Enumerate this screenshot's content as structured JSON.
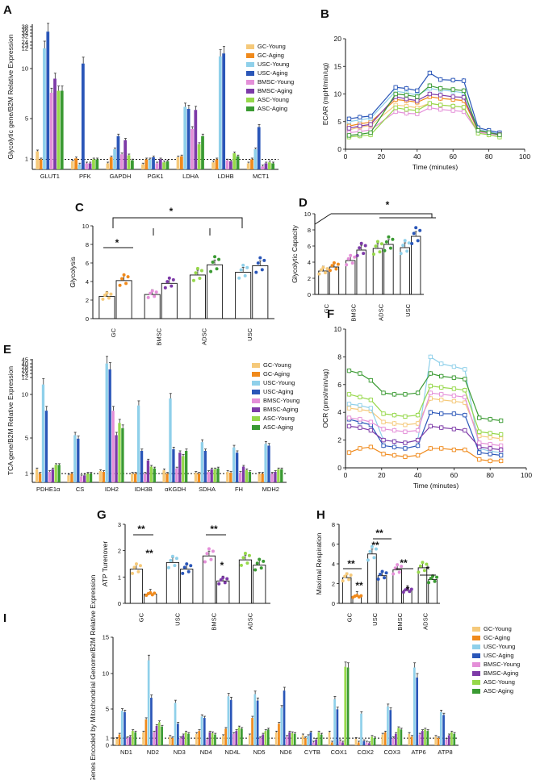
{
  "colors": {
    "GC-Young": "#f5c97a",
    "GC-Aging": "#f08a1c",
    "USC-Young": "#8fd0ea",
    "USC-Aging": "#2a56b8",
    "BMSC-Young": "#e48fd8",
    "BMSC-Aging": "#7d3aa8",
    "ASC-Young": "#96d84a",
    "ASC-Aging": "#3a9a32"
  },
  "legend_labels": [
    "GC-Young",
    "GC-Aging",
    "USC-Young",
    "USC-Aging",
    "BMSC-Young",
    "BMSC-Aging",
    "ASC-Young",
    "ASC-Aging"
  ],
  "chart_data": [
    {
      "panel": "A",
      "type": "bar",
      "ylabel": "Glycolytic gene/B2M Relative Expression",
      "categories": [
        "GLUT1",
        "PFK",
        "GAPDH",
        "PGK1",
        "LDHA",
        "LDHB",
        "MCT1"
      ],
      "yticks": [
        "1",
        "5",
        "10",
        "12",
        "23",
        "24",
        "32",
        "34",
        "36",
        "38"
      ],
      "series_values": [
        [
          1.8,
          0.8,
          0.6,
          0.5,
          1.2,
          0.7,
          0.6
        ],
        [
          1.0,
          1.1,
          1.2,
          1.0,
          1.3,
          1.0,
          1.0
        ],
        [
          12,
          0.5,
          2.0,
          1.0,
          6.2,
          11.2,
          2.0
        ],
        [
          30,
          10.5,
          3.3,
          1.2,
          6.0,
          11.5,
          4.2
        ],
        [
          7.6,
          0.6,
          1.5,
          0.6,
          4.0,
          0.9,
          0.3
        ],
        [
          9.0,
          0.6,
          2.9,
          1.0,
          5.9,
          0.8,
          0.6
        ],
        [
          7.8,
          1.0,
          1.4,
          0.7,
          2.5,
          1.6,
          0.7
        ],
        [
          7.8,
          1.0,
          0.9,
          0.8,
          3.3,
          1.3,
          0.6
        ]
      ]
    },
    {
      "panel": "B",
      "type": "line",
      "xlabel": "Time (minutes)",
      "ylabel": "ECAR (mpH/min/ug)",
      "xlim": [
        0,
        100
      ],
      "ylim": [
        0,
        20
      ],
      "xticks": [
        "0",
        "20",
        "40",
        "60",
        "80",
        "100"
      ],
      "yticks": [
        "0",
        "5",
        "10",
        "15",
        "20"
      ],
      "x": [
        2,
        8,
        14,
        28,
        34,
        40,
        47,
        53,
        60,
        66,
        74,
        80,
        86
      ],
      "series_values": [
        [
          3.5,
          4.0,
          4.3,
          8.0,
          7.8,
          7.5,
          8.3,
          8.0,
          7.8,
          7.6,
          3.2,
          3.0,
          2.6
        ],
        [
          4.2,
          4.6,
          4.9,
          9.0,
          8.8,
          8.5,
          9.5,
          9.2,
          9.0,
          8.8,
          3.4,
          3.1,
          2.7
        ],
        [
          5.0,
          5.3,
          5.6,
          10.5,
          10.2,
          9.8,
          11.0,
          10.7,
          10.5,
          10.2,
          3.6,
          3.2,
          2.8
        ],
        [
          5.5,
          5.8,
          6.0,
          11.2,
          11.0,
          10.6,
          13.8,
          12.6,
          12.5,
          12.4,
          3.9,
          3.4,
          3.0
        ],
        [
          3.0,
          3.2,
          3.5,
          6.8,
          6.5,
          6.4,
          7.5,
          7.2,
          7.0,
          6.8,
          3.1,
          2.8,
          2.5
        ],
        [
          3.8,
          4.2,
          4.5,
          9.5,
          9.1,
          8.8,
          10.0,
          9.8,
          9.5,
          9.4,
          3.4,
          3.0,
          2.7
        ],
        [
          2.2,
          2.4,
          2.6,
          7.5,
          7.2,
          7.0,
          8.3,
          8.0,
          7.8,
          7.6,
          2.9,
          2.6,
          2.2
        ],
        [
          2.5,
          2.7,
          3.0,
          10.0,
          9.8,
          9.5,
          11.5,
          11.0,
          10.8,
          10.6,
          3.4,
          3.0,
          2.6
        ]
      ]
    },
    {
      "panel": "C",
      "type": "bar",
      "ylabel": "Glycolysis",
      "ylim": [
        0,
        10
      ],
      "yticks": [
        "0",
        "2",
        "4",
        "6",
        "8",
        "10"
      ],
      "categories": [
        "GC",
        "BMSC",
        "ADSC",
        "USC"
      ],
      "series": [
        {
          "name": "Young",
          "values": [
            2.4,
            2.6,
            4.7,
            5.0
          ]
        },
        {
          "name": "Aging",
          "values": [
            4.1,
            3.8,
            5.8,
            5.7
          ]
        }
      ],
      "significance": [
        "*",
        "*"
      ]
    },
    {
      "panel": "D",
      "type": "bar",
      "ylabel": "Glycolytic Capacity",
      "ylim": [
        0,
        10
      ],
      "yticks": [
        "0",
        "2",
        "4",
        "6",
        "8",
        "10"
      ],
      "categories": [
        "GC",
        "BMSC",
        "ADSC",
        "USC"
      ],
      "series": [
        {
          "name": "Young",
          "values": [
            2.9,
            4.2,
            5.7,
            5.8
          ]
        },
        {
          "name": "Aging",
          "values": [
            3.4,
            5.5,
            6.2,
            7.2
          ]
        }
      ],
      "significance": [
        "*"
      ]
    },
    {
      "panel": "E",
      "type": "bar",
      "ylabel": "TCA gene/B2M Relative Expression",
      "categories": [
        "PDHE1α",
        "CS",
        "IDH2",
        "IDH3B",
        "αKGDH",
        "SDHA",
        "FH",
        "MDH2"
      ],
      "yticks": [
        "1",
        "5",
        "10",
        "12",
        "24",
        "26",
        "28",
        "40",
        "45"
      ],
      "series_values": [
        [
          1.5,
          0.8,
          1.3,
          1.0,
          1.4,
          1.1,
          1.2,
          1.0
        ],
        [
          1.0,
          1.0,
          1.2,
          1.0,
          1.0,
          1.0,
          1.1,
          1.0
        ],
        [
          11.2,
          5.4,
          38.0,
          8.8,
          9.6,
          4.6,
          4.0,
          4.4
        ],
        [
          8.2,
          5.0,
          27.0,
          3.6,
          3.8,
          3.6,
          3.4,
          4.2
        ],
        [
          1.2,
          0.7,
          8.2,
          1.0,
          1.6,
          1.2,
          1.1,
          1.0
        ],
        [
          1.5,
          0.8,
          5.4,
          2.5,
          3.4,
          1.5,
          1.8,
          1.2
        ],
        [
          2.0,
          1.0,
          6.8,
          1.8,
          3.0,
          1.5,
          1.4,
          1.5
        ],
        [
          2.0,
          1.0,
          6.2,
          1.6,
          3.6,
          1.6,
          1.2,
          1.5
        ]
      ]
    },
    {
      "panel": "F",
      "type": "line",
      "xlabel": "Time (minutes)",
      "ylabel": "OCR (pmol/min/ug)",
      "xlim": [
        0,
        100
      ],
      "ylim": [
        0,
        10
      ],
      "xticks": [
        "0",
        "20",
        "40",
        "60",
        "80",
        "100"
      ],
      "yticks": [
        "0",
        "2",
        "4",
        "6",
        "8",
        "10"
      ],
      "x": [
        2,
        8,
        14,
        21,
        27,
        33,
        40,
        47,
        53,
        60,
        66,
        74,
        80,
        86
      ],
      "series_values": [
        [
          4.3,
          4.2,
          4.1,
          3.3,
          3.2,
          3.1,
          3.2,
          5.0,
          4.9,
          4.8,
          4.7,
          2.3,
          2.2,
          2.1
        ],
        [
          1.1,
          1.4,
          1.5,
          1.0,
          0.9,
          0.8,
          0.9,
          1.4,
          1.4,
          1.3,
          1.3,
          0.6,
          0.5,
          0.5
        ],
        [
          4.6,
          4.5,
          4.3,
          2.0,
          1.9,
          1.8,
          2.0,
          8.0,
          7.5,
          7.3,
          7.1,
          1.4,
          1.2,
          1.1
        ],
        [
          3.5,
          3.3,
          3.1,
          1.6,
          1.5,
          1.4,
          1.6,
          4.0,
          3.9,
          3.9,
          3.8,
          1.1,
          1.0,
          0.9
        ],
        [
          3.6,
          3.5,
          3.3,
          2.8,
          2.7,
          2.6,
          2.7,
          5.4,
          5.3,
          5.2,
          5.1,
          1.8,
          1.7,
          1.6
        ],
        [
          3.0,
          2.9,
          2.7,
          2.0,
          1.9,
          1.8,
          2.0,
          3.0,
          2.9,
          2.8,
          2.7,
          1.5,
          1.4,
          1.3
        ],
        [
          5.3,
          5.1,
          4.9,
          3.9,
          3.8,
          3.7,
          3.8,
          5.9,
          5.8,
          5.7,
          5.6,
          2.6,
          2.5,
          2.4
        ],
        [
          7.0,
          6.8,
          6.3,
          5.4,
          5.3,
          5.3,
          5.4,
          6.8,
          6.6,
          6.5,
          6.4,
          3.6,
          3.5,
          3.4
        ]
      ]
    },
    {
      "panel": "G",
      "type": "bar",
      "ylabel": "ATP Turenover",
      "ylim": [
        0,
        3
      ],
      "yticks": [
        "0",
        "1",
        "2",
        "3"
      ],
      "categories": [
        "GC",
        "USC",
        "BMSC",
        "ADSC"
      ],
      "series": [
        {
          "name": "Young",
          "values": [
            1.3,
            1.55,
            1.8,
            1.65
          ]
        },
        {
          "name": "Aging",
          "values": [
            0.35,
            1.3,
            0.85,
            1.45
          ]
        }
      ],
      "significance": [
        "**",
        "**",
        "**",
        "*"
      ]
    },
    {
      "panel": "H",
      "type": "bar",
      "ylabel": "Maximal Respiration",
      "ylim": [
        0,
        8
      ],
      "yticks": [
        "0",
        "2",
        "4",
        "6",
        "8"
      ],
      "categories": [
        "GC",
        "USC",
        "BMSC",
        "ADSC"
      ],
      "series": [
        {
          "name": "Young",
          "values": [
            2.6,
            5.0,
            3.4,
            3.6
          ]
        },
        {
          "name": "Aging",
          "values": [
            0.7,
            2.8,
            1.3,
            2.4
          ]
        }
      ],
      "significance": [
        "**",
        "**",
        "**",
        "**",
        "**",
        "*",
        "*"
      ]
    },
    {
      "panel": "I",
      "type": "bar",
      "ylabel": "13 ETC Genes Encoded by Mitochondrial Genome/B2M Relative Expression",
      "categories": [
        "ND1",
        "ND2",
        "ND3",
        "ND4",
        "ND4L",
        "ND5",
        "ND6",
        "CYTB",
        "COX1",
        "COX2",
        "COX3",
        "ATP6",
        "ATP8"
      ],
      "ylim": [
        0,
        15
      ],
      "yticks": [
        "0",
        "1",
        "5",
        "10",
        "15"
      ],
      "series_values": [
        [
          0.9,
          1.8,
          1.2,
          1.6,
          1.3,
          1.4,
          1.8,
          1.4,
          1.8,
          0.9,
          1.5,
          1.6,
          1.2
        ],
        [
          1.5,
          3.6,
          1.0,
          2.0,
          2.3,
          3.8,
          3.0,
          1.0,
          0.4,
          0.4,
          1.8,
          1.2,
          1.0
        ],
        [
          4.8,
          11.8,
          5.9,
          4.0,
          6.8,
          7.1,
          5.2,
          1.3,
          6.4,
          4.4,
          5.4,
          10.8,
          4.6
        ],
        [
          4.6,
          6.6,
          3.0,
          3.8,
          6.3,
          6.2,
          7.6,
          1.8,
          5.0,
          0.6,
          4.9,
          9.4,
          4.2
        ],
        [
          1.0,
          1.8,
          1.0,
          0.8,
          1.6,
          1.0,
          1.2,
          0.4,
          0.6,
          0.4,
          1.0,
          1.5,
          0.8
        ],
        [
          1.2,
          2.7,
          1.4,
          1.8,
          2.0,
          1.5,
          1.8,
          0.8,
          0.4,
          0.3,
          1.6,
          2.0,
          1.4
        ],
        [
          2.0,
          3.2,
          1.8,
          1.7,
          2.5,
          2.0,
          1.7,
          1.8,
          10.9,
          1.2,
          2.4,
          2.2,
          1.8
        ],
        [
          1.8,
          2.6,
          1.6,
          1.5,
          2.3,
          2.2,
          1.6,
          1.5,
          10.8,
          1.0,
          2.2,
          2.0,
          1.6
        ]
      ]
    }
  ]
}
